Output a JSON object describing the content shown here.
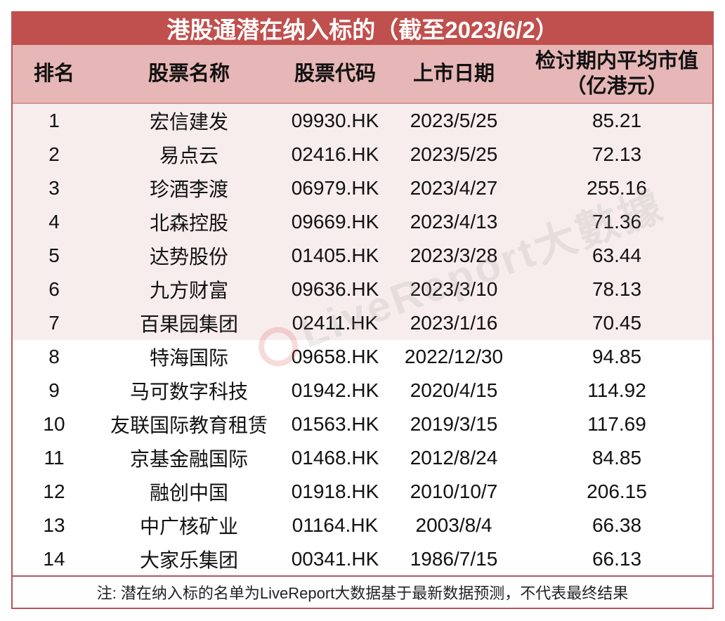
{
  "title": "港股通潜在纳入标的（截至2023/6/2）",
  "header": {
    "rank": "排名",
    "name": "股票名称",
    "code": "股票代码",
    "listing_date": "上市日期",
    "avg_market_cap_line1": "检讨期内平均市值",
    "avg_market_cap_line2": "（亿港元）"
  },
  "colors": {
    "title_bg": "#c0504d",
    "header_bg": "#e6b7b6",
    "highlight_row_bg": "#f8eded",
    "border": "#b5575a"
  },
  "rows": [
    {
      "rank": "1",
      "name": "宏信建发",
      "code": "09930.HK",
      "date": "2023/5/25",
      "value": "85.21"
    },
    {
      "rank": "2",
      "name": "易点云",
      "code": "02416.HK",
      "date": "2023/5/25",
      "value": "72.13"
    },
    {
      "rank": "3",
      "name": "珍酒李渡",
      "code": "06979.HK",
      "date": "2023/4/27",
      "value": "255.16"
    },
    {
      "rank": "4",
      "name": "北森控股",
      "code": "09669.HK",
      "date": "2023/4/13",
      "value": "71.36"
    },
    {
      "rank": "5",
      "name": "达势股份",
      "code": "01405.HK",
      "date": "2023/3/28",
      "value": "63.44"
    },
    {
      "rank": "6",
      "name": "九方财富",
      "code": "09636.HK",
      "date": "2023/3/10",
      "value": "78.13"
    },
    {
      "rank": "7",
      "name": "百果园集团",
      "code": "02411.HK",
      "date": "2023/1/16",
      "value": "70.45"
    },
    {
      "rank": "8",
      "name": "特海国际",
      "code": "09658.HK",
      "date": "2022/12/30",
      "value": "94.85"
    },
    {
      "rank": "9",
      "name": "马可数字科技",
      "code": "01942.HK",
      "date": "2020/4/15",
      "value": "114.92"
    },
    {
      "rank": "10",
      "name": "友联国际教育租赁",
      "code": "01563.HK",
      "date": "2019/3/15",
      "value": "117.69"
    },
    {
      "rank": "11",
      "name": "京基金融国际",
      "code": "01468.HK",
      "date": "2012/8/24",
      "value": "84.85"
    },
    {
      "rank": "12",
      "name": "融创中国",
      "code": "01918.HK",
      "date": "2010/10/7",
      "value": "206.15"
    },
    {
      "rank": "13",
      "name": "中广核矿业",
      "code": "01164.HK",
      "date": "2003/8/4",
      "value": "66.38"
    },
    {
      "rank": "14",
      "name": "大家乐集团",
      "code": "00341.HK",
      "date": "1986/7/15",
      "value": "66.13"
    }
  ],
  "footer": "注: 潜在纳入标的名单为LiveReport大数据基于最新数据预测，不代表最终结果",
  "watermark": "LiveReport大數據"
}
